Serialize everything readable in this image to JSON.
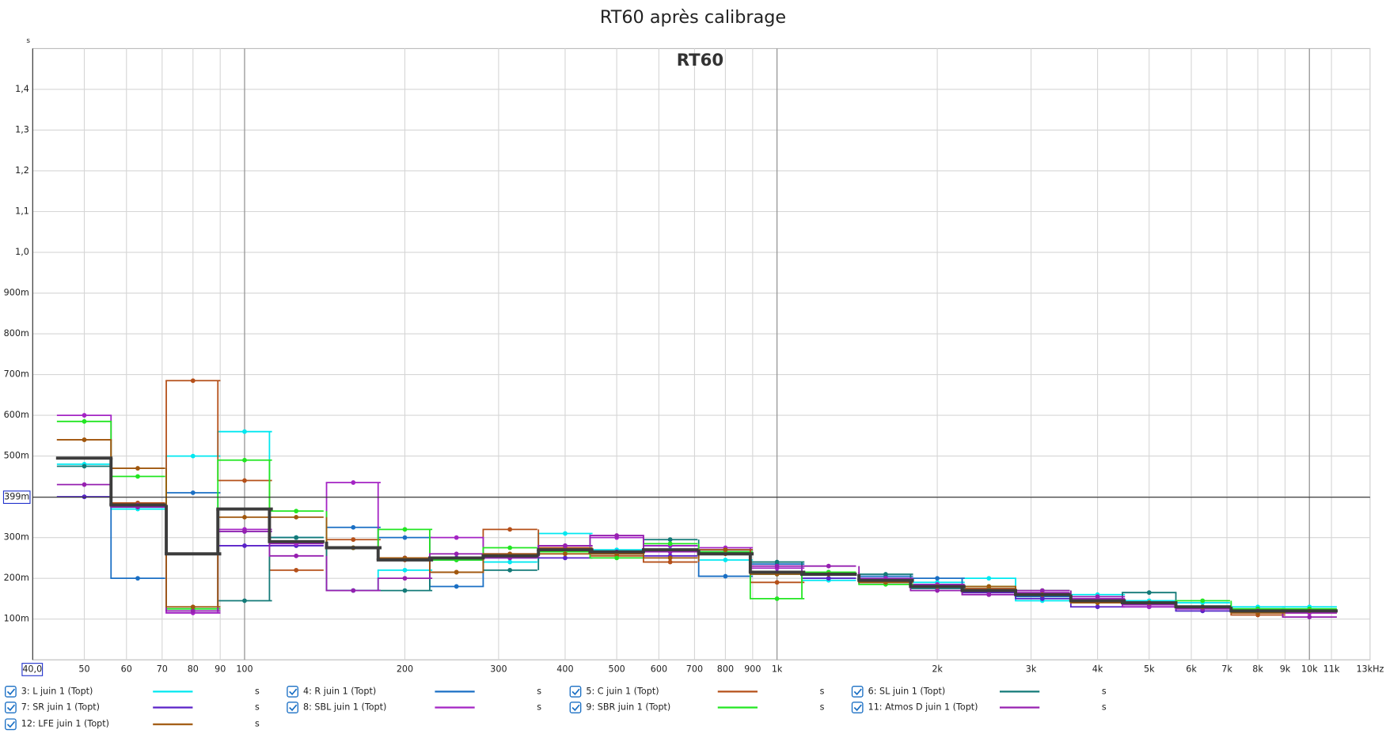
{
  "chart_data": {
    "type": "step",
    "title": "RT60 après calibrage",
    "plot_label": "RT60",
    "y_unit": "s",
    "xscale": "log",
    "grid": true,
    "xlim": [
      40,
      13000
    ],
    "ylim": [
      0,
      1.5
    ],
    "xticks": [
      50,
      60,
      70,
      80,
      90,
      100,
      200,
      300,
      400,
      500,
      600,
      700,
      800,
      900,
      {
        "value": 1000,
        "label": "1k"
      },
      {
        "value": 2000,
        "label": "2k"
      },
      {
        "value": 3000,
        "label": "3k"
      },
      {
        "value": 4000,
        "label": "4k"
      },
      {
        "value": 5000,
        "label": "5k"
      },
      {
        "value": 6000,
        "label": "6k"
      },
      {
        "value": 7000,
        "label": "7k"
      },
      {
        "value": 8000,
        "label": "8k"
      },
      {
        "value": 9000,
        "label": "9k"
      },
      {
        "value": 10000,
        "label": "10k"
      },
      {
        "value": 11000,
        "label": "11k"
      },
      {
        "value": 13000,
        "label": "13kHz"
      }
    ],
    "yticks": [
      {
        "value": 0.1,
        "label": "100m"
      },
      {
        "value": 0.2,
        "label": "200m"
      },
      {
        "value": 0.3,
        "label": "300m"
      },
      {
        "value": 0.4,
        "label": "400m"
      },
      {
        "value": 0.5,
        "label": "500m"
      },
      {
        "value": 0.6,
        "label": "600m"
      },
      {
        "value": 0.7,
        "label": "700m"
      },
      {
        "value": 0.8,
        "label": "800m"
      },
      {
        "value": 0.9,
        "label": "900m"
      },
      {
        "value": 1.0,
        "label": "1,0"
      },
      {
        "value": 1.1,
        "label": "1,1"
      },
      {
        "value": 1.2,
        "label": "1,2"
      },
      {
        "value": 1.3,
        "label": "1,3"
      },
      {
        "value": 1.4,
        "label": "1,4"
      }
    ],
    "cursor": {
      "x": {
        "value": 40,
        "label": "40,0"
      },
      "y": {
        "value": 0.399,
        "label": "399m"
      }
    },
    "x": [
      50,
      63,
      80,
      100,
      125,
      160,
      200,
      250,
      315,
      400,
      500,
      630,
      800,
      1000,
      1250,
      1600,
      2000,
      2500,
      3150,
      4000,
      5000,
      6300,
      8000,
      10000
    ],
    "series": [
      {
        "name": "3: L juin 1 (Topt)",
        "unit": "s",
        "color": "#00e8f0",
        "markers": true,
        "values": [
          0.48,
          0.37,
          0.5,
          0.56,
          0.3,
          0.17,
          0.22,
          0.25,
          0.24,
          0.31,
          0.27,
          0.27,
          0.245,
          0.21,
          0.195,
          0.2,
          0.19,
          0.2,
          0.145,
          0.16,
          0.145,
          0.14,
          0.13,
          0.13
        ]
      },
      {
        "name": "4: R juin 1 (Topt)",
        "unit": "s",
        "color": "#1a6fc4",
        "markers": true,
        "values": [
          0.4,
          0.2,
          0.41,
          0.315,
          0.3,
          0.325,
          0.3,
          0.18,
          0.25,
          0.27,
          0.26,
          0.28,
          0.205,
          0.235,
          0.2,
          0.205,
          0.2,
          0.17,
          0.155,
          0.145,
          0.14,
          0.12,
          0.12,
          0.12
        ]
      },
      {
        "name": "5: C juin 1 (Topt)",
        "unit": "s",
        "color": "#b5501a",
        "markers": true,
        "values": [
          0.54,
          0.385,
          0.685,
          0.44,
          0.22,
          0.295,
          0.245,
          0.215,
          0.32,
          0.275,
          0.255,
          0.24,
          0.26,
          0.19,
          0.21,
          0.19,
          0.18,
          0.175,
          0.16,
          0.14,
          0.135,
          0.13,
          0.11,
          0.115
        ]
      },
      {
        "name": "6: SL juin 1 (Topt)",
        "unit": "s",
        "color": "#137a78",
        "markers": true,
        "values": [
          0.475,
          0.375,
          0.125,
          0.145,
          0.3,
          0.17,
          0.17,
          0.245,
          0.22,
          0.265,
          0.26,
          0.295,
          0.265,
          0.24,
          0.215,
          0.21,
          0.175,
          0.17,
          0.16,
          0.14,
          0.165,
          0.13,
          0.125,
          0.12
        ]
      },
      {
        "name": "7: SR juin 1 (Topt)",
        "unit": "s",
        "color": "#5a22c8",
        "markers": true,
        "values": [
          0.4,
          0.375,
          0.12,
          0.28,
          0.28,
          0.275,
          0.25,
          0.25,
          0.255,
          0.25,
          0.265,
          0.255,
          0.265,
          0.215,
          0.2,
          0.19,
          0.18,
          0.165,
          0.15,
          0.13,
          0.13,
          0.12,
          0.12,
          0.12
        ]
      },
      {
        "name": "8: SBL juin 1 (Topt)",
        "unit": "s",
        "color": "#a424c4",
        "markers": true,
        "values": [
          0.6,
          0.38,
          0.115,
          0.32,
          0.285,
          0.435,
          0.25,
          0.3,
          0.26,
          0.28,
          0.3,
          0.28,
          0.275,
          0.225,
          0.215,
          0.2,
          0.185,
          0.16,
          0.165,
          0.15,
          0.13,
          0.125,
          0.12,
          0.115
        ]
      },
      {
        "name": "9: SBR juin 1 (Topt)",
        "unit": "s",
        "color": "#22e622",
        "markers": true,
        "values": [
          0.585,
          0.45,
          0.125,
          0.49,
          0.365,
          0.275,
          0.32,
          0.245,
          0.275,
          0.265,
          0.25,
          0.285,
          0.265,
          0.15,
          0.215,
          0.185,
          0.18,
          0.18,
          0.17,
          0.14,
          0.14,
          0.145,
          0.125,
          0.125
        ]
      },
      {
        "name": "11: Atmos D juin 1 (Topt)",
        "unit": "s",
        "color": "#9620b0",
        "markers": true,
        "values": [
          0.43,
          0.375,
          0.12,
          0.315,
          0.255,
          0.17,
          0.2,
          0.26,
          0.25,
          0.28,
          0.305,
          0.265,
          0.27,
          0.23,
          0.23,
          0.195,
          0.17,
          0.16,
          0.17,
          0.155,
          0.135,
          0.125,
          0.12,
          0.105
        ]
      },
      {
        "name": "12: LFE juin 1 (Topt)",
        "unit": "s",
        "color": "#a0580e",
        "markers": true,
        "values": [
          0.54,
          0.47,
          0.13,
          0.35,
          0.35,
          0.275,
          0.25,
          0.215,
          0.26,
          0.26,
          0.26,
          0.25,
          0.27,
          0.21,
          0.21,
          0.19,
          0.18,
          0.18,
          0.16,
          0.14,
          0.14,
          0.13,
          0.115,
          0.12
        ]
      },
      {
        "color": "#3c3c3c",
        "markers": false,
        "width": 3.5,
        "values": [
          0.495,
          0.38,
          0.26,
          0.37,
          0.29,
          0.275,
          0.245,
          0.25,
          0.255,
          0.27,
          0.265,
          0.27,
          0.26,
          0.215,
          0.21,
          0.195,
          0.18,
          0.17,
          0.16,
          0.145,
          0.14,
          0.13,
          0.12,
          0.12
        ]
      }
    ]
  }
}
